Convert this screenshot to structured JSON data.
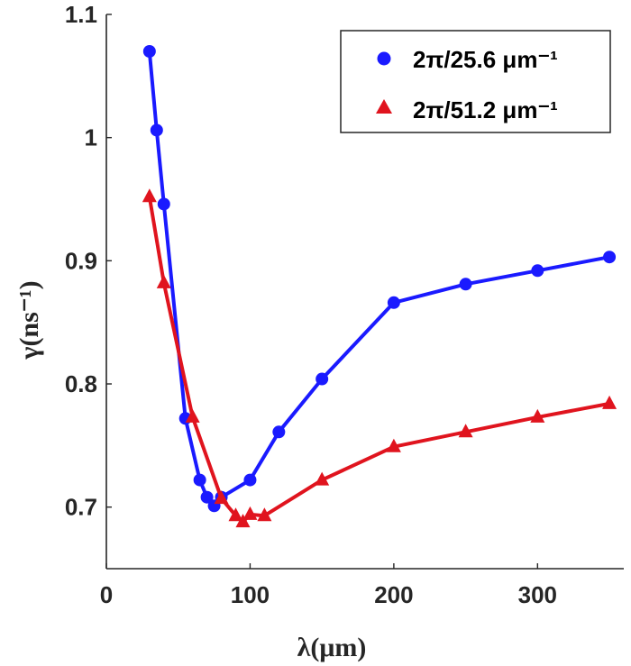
{
  "chart_data": {
    "type": "line",
    "xlabel": "λ(μm)",
    "ylabel": "γ(ns⁻¹)",
    "xlim": [
      0,
      360
    ],
    "ylim": [
      0.65,
      1.1
    ],
    "xticks": [
      0,
      100,
      200,
      300
    ],
    "yticks": [
      0.7,
      0.8,
      0.9,
      1,
      1.1
    ],
    "xtick_labels": [
      "0",
      "100",
      "200",
      "300"
    ],
    "ytick_labels": [
      "0.7",
      "0.8",
      "0.9",
      "1",
      "1.1"
    ],
    "grid": false,
    "legend_position": "top-right",
    "series": [
      {
        "name": "2π/25.6 μm⁻¹",
        "color": "#1a1aff",
        "marker": "circle",
        "x": [
          30,
          35,
          40,
          55,
          65,
          70,
          75,
          80,
          100,
          120,
          150,
          200,
          250,
          300,
          350
        ],
        "y": [
          1.07,
          1.006,
          0.946,
          0.772,
          0.722,
          0.708,
          0.701,
          0.708,
          0.722,
          0.761,
          0.804,
          0.866,
          0.881,
          0.892,
          0.903
        ]
      },
      {
        "name": "2π/51.2 μm⁻¹",
        "color": "#e0141e",
        "marker": "triangle",
        "x": [
          30,
          40,
          60,
          80,
          90,
          95,
          100,
          110,
          150,
          200,
          250,
          300,
          350
        ],
        "y": [
          0.952,
          0.882,
          0.773,
          0.707,
          0.693,
          0.688,
          0.694,
          0.693,
          0.722,
          0.749,
          0.761,
          0.773,
          0.784
        ]
      }
    ]
  }
}
